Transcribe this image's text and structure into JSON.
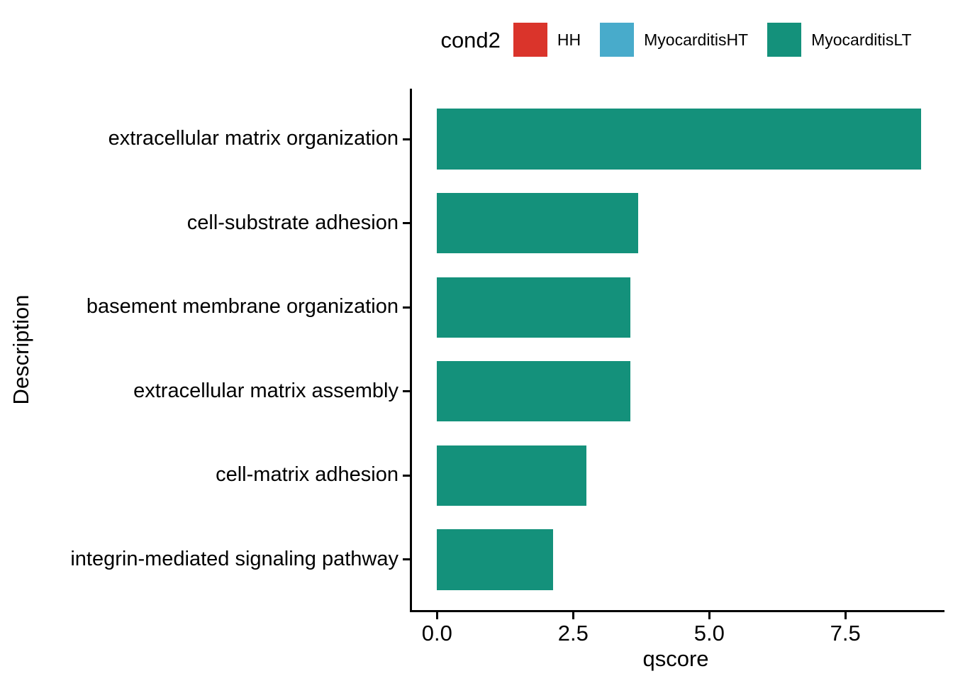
{
  "legend": {
    "title": "cond2",
    "position": "top",
    "items": [
      {
        "label": "HH",
        "color": "#DA342B"
      },
      {
        "label": "MyocarditisHT",
        "color": "#48ABCB"
      },
      {
        "label": "MyocarditisLT",
        "color": "#14917B"
      }
    ]
  },
  "chart_data": {
    "type": "bar",
    "orientation": "horizontal",
    "title": "",
    "xlabel": "qscore",
    "ylabel": "Description",
    "categories": [
      "extracellular matrix organization",
      "cell-substrate adhesion",
      "basement membrane organization",
      "extracellular matrix assembly",
      "cell-matrix adhesion",
      "integrin-mediated signaling pathway"
    ],
    "series": [
      {
        "name": "MyocarditisLT",
        "values": [
          8.89,
          3.7,
          3.55,
          3.55,
          2.75,
          2.13
        ],
        "color": "#14917B"
      }
    ],
    "xticks": [
      0,
      2.5,
      5,
      7.5
    ],
    "xtick_labels": [
      "0.0",
      "2.5",
      "5.0",
      "7.5"
    ],
    "xlim": [
      -0.46,
      9.32
    ],
    "bar_band_fraction": 0.72,
    "grid": false,
    "legend_position": "top",
    "axis_color": "#000000",
    "text_color": "#000000",
    "background_color": "#FFFFFF"
  }
}
